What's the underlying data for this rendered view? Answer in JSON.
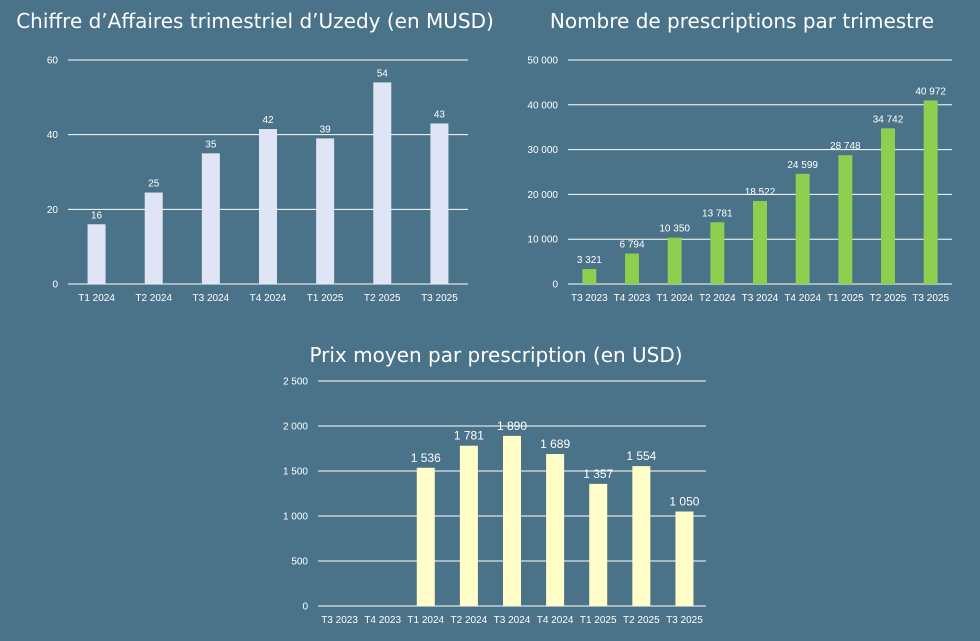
{
  "chart_data": [
    {
      "type": "bar",
      "title": "Chiffre d’Affaires trimestriel d’Uzedy (en MUSD)",
      "categories": [
        "T1 2024",
        "T2 2024",
        "T3 2024",
        "T4 2024",
        "T1 2025",
        "T2 2025",
        "T3 2025"
      ],
      "values": [
        16,
        24.5,
        35,
        41.5,
        39,
        54,
        43
      ],
      "data_labels": [
        "16",
        "25",
        "35",
        "42",
        "39",
        "54",
        "43"
      ],
      "ylim": [
        0,
        60
      ],
      "yticks": [
        0,
        20,
        40,
        60
      ],
      "ytick_labels": [
        "0",
        "20",
        "40",
        "60"
      ],
      "grid": true,
      "bar_color": "#dfe5f5"
    },
    {
      "type": "bar",
      "title": "Nombre de prescriptions par trimestre",
      "categories": [
        "T3 2023",
        "T4 2023",
        "T1 2024",
        "T2 2024",
        "T3 2024",
        "T4 2024",
        "T1 2025",
        "T2 2025",
        "T3 2025"
      ],
      "values": [
        3321,
        6794,
        10350,
        13781,
        18522,
        24599,
        28748,
        34742,
        40972
      ],
      "data_labels": [
        "3 321",
        "6 794",
        "10 350",
        "13 781",
        "18 522",
        "24 599",
        "28 748",
        "34 742",
        "40 972"
      ],
      "ylim": [
        0,
        50000
      ],
      "yticks": [
        0,
        10000,
        20000,
        30000,
        40000,
        50000
      ],
      "ytick_labels": [
        "0",
        "10 000",
        "20 000",
        "30 000",
        "40 000",
        "50 000"
      ],
      "grid": true,
      "bar_color": "#8ecf50"
    },
    {
      "type": "bar",
      "title": "Prix moyen par prescription (en USD)",
      "categories": [
        "T3 2023",
        "T4 2023",
        "T1 2024",
        "T2 2024",
        "T3 2024",
        "T4 2024",
        "T1 2025",
        "T2 2025",
        "T3 2025"
      ],
      "values": [
        null,
        null,
        1536,
        1781,
        1890,
        1689,
        1357,
        1554,
        1050
      ],
      "data_labels": [
        "",
        "",
        "1 536",
        "1 781",
        "1 890",
        "1 689",
        "1 357",
        "1 554",
        "1 050"
      ],
      "ylim": [
        0,
        2500
      ],
      "yticks": [
        0,
        500,
        1000,
        1500,
        2000,
        2500
      ],
      "ytick_labels": [
        "0",
        "500",
        "1 000",
        "1 500",
        "2 000",
        "2 500"
      ],
      "grid": true,
      "bar_color": "#fffdc8"
    }
  ]
}
